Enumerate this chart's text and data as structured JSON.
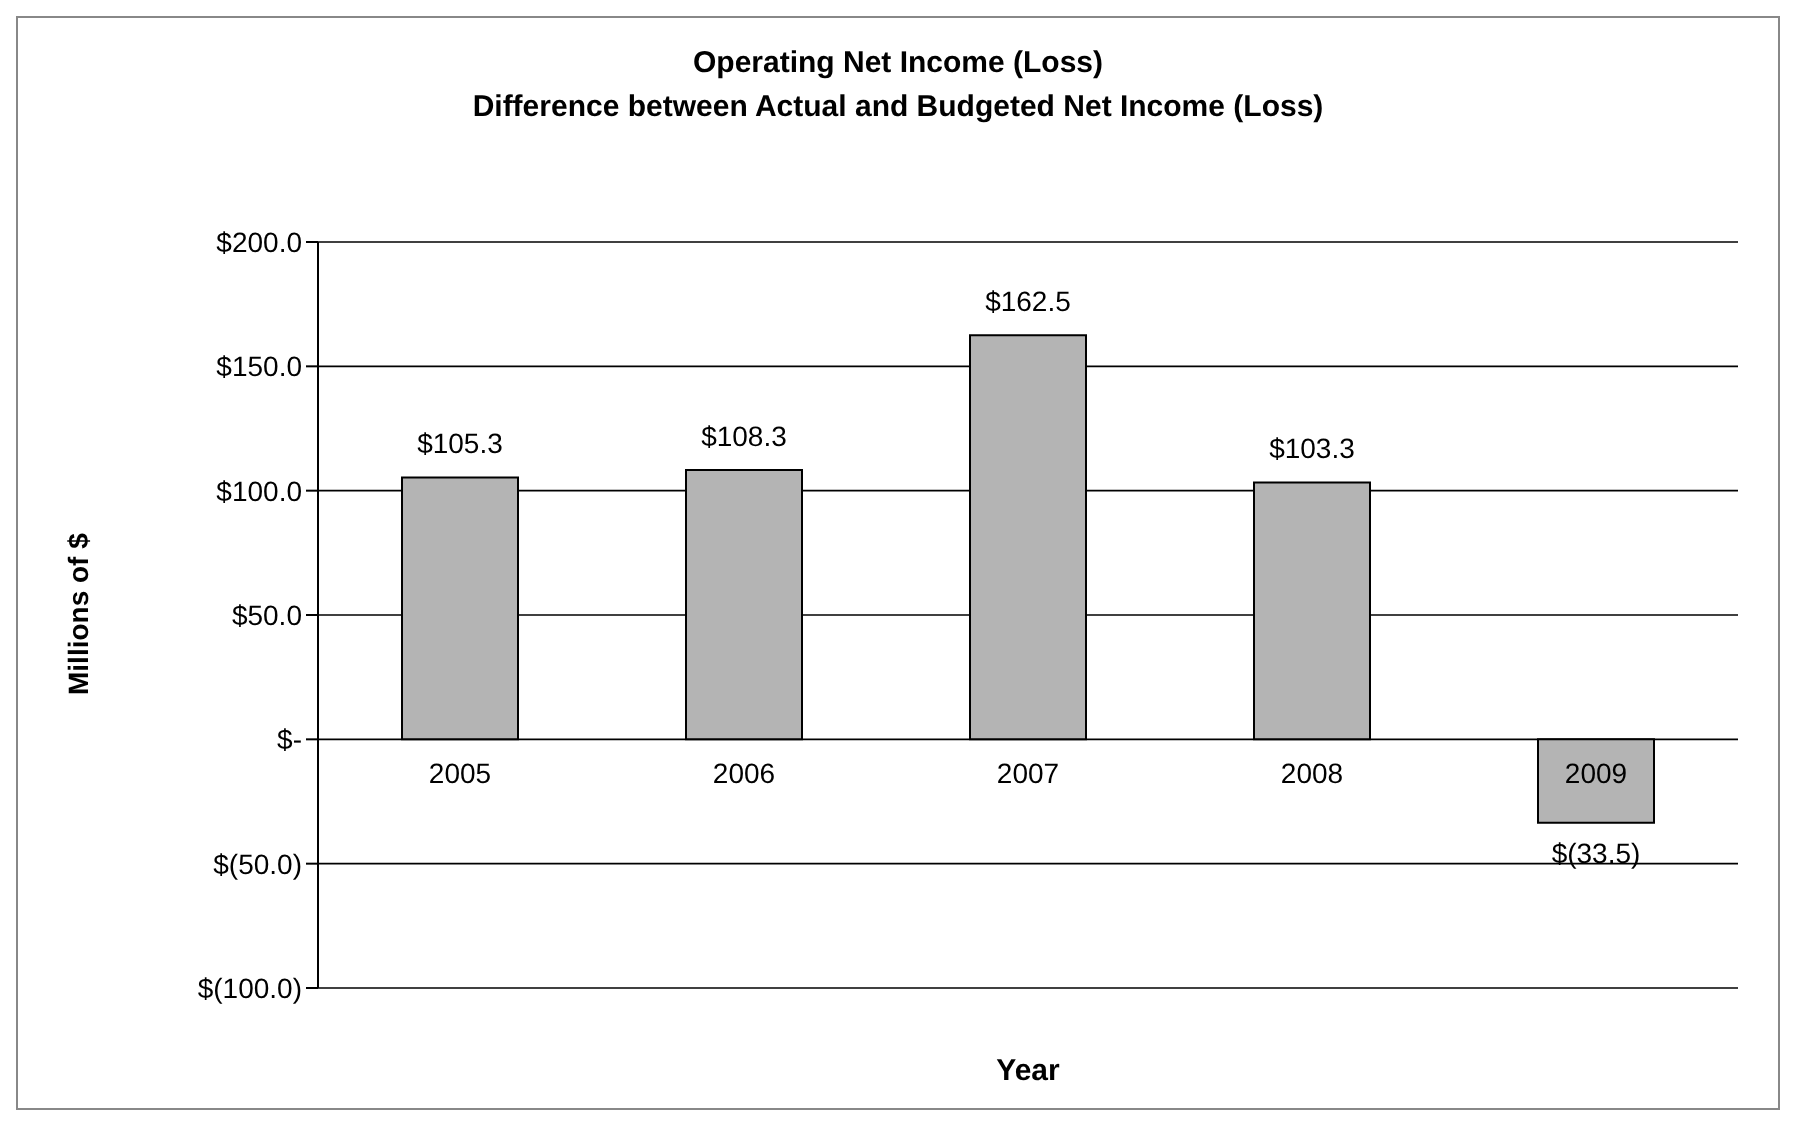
{
  "chart_data": {
    "type": "bar",
    "title": "Operating Net Income (Loss)",
    "subtitle": "Difference between Actual and Budgeted Net Income (Loss)",
    "xlabel": "Year",
    "ylabel": "Millions of $",
    "categories": [
      "2005",
      "2006",
      "2007",
      "2008",
      "2009"
    ],
    "values": [
      105.3,
      108.3,
      162.5,
      103.3,
      -33.5
    ],
    "value_labels": [
      "$105.3",
      "$108.3",
      "$162.5",
      "$103.3",
      "$(33.5)"
    ],
    "color": "#b4b4b4",
    "ylim": [
      -100,
      200
    ],
    "yticks": [
      {
        "value": -100,
        "label": "$(100.0)"
      },
      {
        "value": -50,
        "label": "$(50.0)"
      },
      {
        "value": 0,
        "label": "$-"
      },
      {
        "value": 50,
        "label": "$50.0"
      },
      {
        "value": 100,
        "label": "$100.0"
      },
      {
        "value": 150,
        "label": "$150.0"
      },
      {
        "value": 200,
        "label": "$200.0"
      }
    ],
    "grid": "y"
  }
}
